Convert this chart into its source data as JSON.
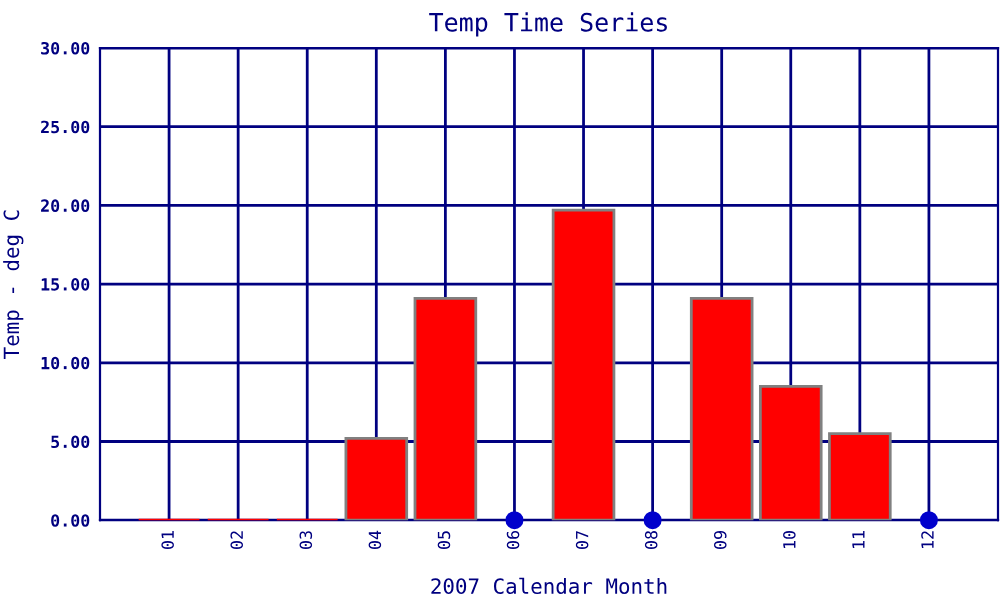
{
  "chart_data": {
    "type": "bar",
    "title": "Temp Time Series",
    "xlabel": "2007 Calendar Month",
    "ylabel": "Temp - deg C",
    "categories": [
      "01",
      "02",
      "03",
      "04",
      "05",
      "06",
      "07",
      "08",
      "09",
      "10",
      "11",
      "12"
    ],
    "series": [
      {
        "color": "#ff0000",
        "values": [
          0,
          0,
          0,
          5.2,
          14.1,
          null,
          19.7,
          null,
          14.1,
          8.5,
          5.5,
          null
        ]
      },
      {
        "type": "scatter",
        "color": "#0000cc",
        "x": [
          "06",
          "08",
          "12"
        ],
        "values": [
          0,
          0,
          0
        ]
      }
    ],
    "ylim": [
      0,
      30
    ],
    "yticks": [
      {
        "value": 0,
        "label": "0.00"
      },
      {
        "value": 5,
        "label": "5.00"
      },
      {
        "value": 10,
        "label": "10.00"
      },
      {
        "value": 15,
        "label": "15.00"
      },
      {
        "value": 20,
        "label": "20.00"
      },
      {
        "value": 25,
        "label": "25.00"
      },
      {
        "value": 30,
        "label": "30.00"
      }
    ],
    "grid": true,
    "marker": "circle"
  }
}
